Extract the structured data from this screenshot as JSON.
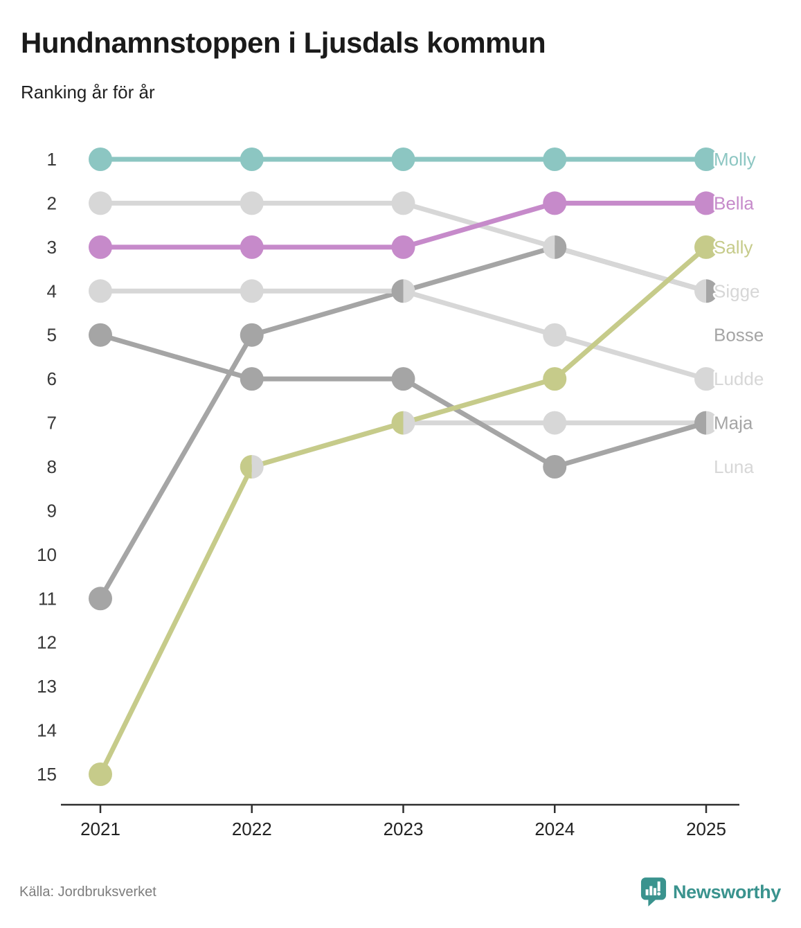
{
  "header": {
    "title": "Hundnamnstoppen i Ljusdals kommun",
    "subtitle": "Ranking år för år"
  },
  "footer": {
    "source": "Källa: Jordbruksverket",
    "brand": "Newsworthy",
    "brand_icon": "bar-chart-speech-bubble-icon"
  },
  "colors": {
    "background": "#ffffff",
    "title_text": "#1a1a1a",
    "axis_text": "#383838",
    "year_text": "#222222",
    "axis_line": "#2f2f2f",
    "source_text": "#7d7d7d",
    "brand_teal": "#3a938e",
    "label_halo": "#ffffff"
  },
  "chart_data": {
    "type": "line",
    "variant": "bump-ranking-chart",
    "title": "Hundnamnstoppen i Ljusdals kommun",
    "subtitle": "Ranking år för år",
    "x": [
      2021,
      2022,
      2023,
      2024,
      2025
    ],
    "x_tick_labels": [
      "2021",
      "2022",
      "2023",
      "2024",
      "2025"
    ],
    "y_tick_labels": [
      "1",
      "2",
      "3",
      "4",
      "5",
      "6",
      "7",
      "8",
      "9",
      "10",
      "11",
      "12",
      "13",
      "14",
      "15"
    ],
    "ylim": [
      1,
      15
    ],
    "y_meaning": "rank (1 = most popular dog name)",
    "grid": false,
    "legend_position": "right-end-labels",
    "series": [
      {
        "name": "Molly",
        "color": "#8cc6c2",
        "ranks": [
          1,
          1,
          1,
          1,
          1
        ],
        "label_slot": 1
      },
      {
        "name": "Bella",
        "color": "#c68aca",
        "ranks": [
          3,
          3,
          3,
          2,
          2
        ],
        "label_slot": 2
      },
      {
        "name": "Sally",
        "color": "#c6cb8a",
        "ranks": [
          15,
          8,
          7,
          6,
          3
        ],
        "label_slot": 3
      },
      {
        "name": "Sigge",
        "color": "#d7d7d7",
        "ranks": [
          2,
          2,
          2,
          3,
          4
        ],
        "label_slot": 4
      },
      {
        "name": "Bosse",
        "color": "#a5a5a5",
        "ranks": [
          11,
          5,
          4,
          3,
          4
        ],
        "label_slot": 5
      },
      {
        "name": "Ludde",
        "color": "#d7d7d7",
        "ranks": [
          4,
          4,
          4,
          5,
          6
        ],
        "label_slot": 6
      },
      {
        "name": "Maja",
        "color": "#a5a5a5",
        "ranks": [
          5,
          6,
          6,
          8,
          7
        ],
        "label_slot": 7
      },
      {
        "name": "Luna",
        "color": "#d7d7d7",
        "ranks": [
          null,
          8,
          7,
          7,
          7
        ],
        "label_slot": 8
      }
    ],
    "ties": [
      {
        "x": 2022,
        "rank": 8,
        "left": "Sally",
        "right": "Luna"
      },
      {
        "x": 2023,
        "rank": 4,
        "left": "Bosse",
        "right": "Ludde"
      },
      {
        "x": 2023,
        "rank": 7,
        "left": "Sally",
        "right": "Luna"
      },
      {
        "x": 2024,
        "rank": 3,
        "left": "Sigge",
        "right": "Bosse"
      },
      {
        "x": 2025,
        "rank": 4,
        "left": "Sigge",
        "right": "Bosse"
      },
      {
        "x": 2025,
        "rank": 7,
        "left": "Maja",
        "right": "Luna"
      }
    ]
  }
}
